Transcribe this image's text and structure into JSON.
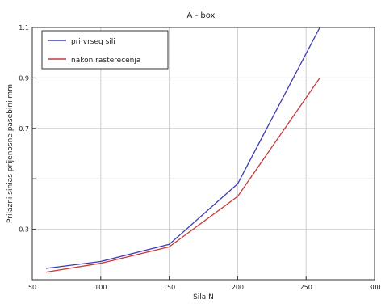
{
  "chart_data": {
    "type": "line",
    "title": "A - box",
    "xlabel": "Sila    N",
    "ylabel": "Prilazni sinias prijenosne pasebini   mm",
    "xlim": [
      50,
      300
    ],
    "ylim": [
      0.1,
      1.1
    ],
    "x_ticks": [
      50,
      100,
      150,
      200,
      250,
      300
    ],
    "y_ticks": [
      0.1,
      0.3,
      0.5,
      0.7,
      0.9,
      1.1
    ],
    "y_tick_labels": [
      "",
      "0.3",
      "",
      "0.7",
      "0.9",
      "1.1"
    ],
    "grid": true,
    "legend": {
      "placement": "top-left"
    },
    "series": [
      {
        "name": "pri vrseq sili",
        "color": "#3b3bb3",
        "x": [
          60,
          100,
          150,
          200,
          260
        ],
        "y": [
          0.145,
          0.172,
          0.24,
          0.48,
          1.1
        ]
      },
      {
        "name": "nakon rasterecenja",
        "color": "#c8393b",
        "x": [
          60,
          100,
          150,
          200,
          260
        ],
        "y": [
          0.13,
          0.165,
          0.23,
          0.43,
          0.9
        ]
      }
    ]
  }
}
